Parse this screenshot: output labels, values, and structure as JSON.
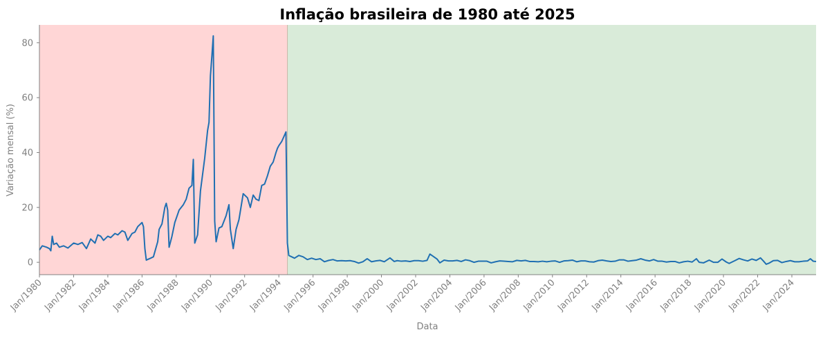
{
  "chart_data": {
    "type": "line",
    "title": "Inflação brasileira de 1980 até 2025",
    "xlabel": "Data",
    "ylabel": "Variação mensal (%)",
    "x_range": [
      "1980-01",
      "2025-06"
    ],
    "ylim": [
      -4.5,
      86.5
    ],
    "y_ticks": [
      0,
      20,
      40,
      60,
      80
    ],
    "x_ticks": [
      "Jan/1980",
      "Jan/1982",
      "Jan/1984",
      "Jan/1986",
      "Jan/1988",
      "Jan/1990",
      "Jan/1992",
      "Jan/1994",
      "Jan/1996",
      "Jan/1998",
      "Jan/2000",
      "Jan/2002",
      "Jan/2004",
      "Jan/2006",
      "Jan/2008",
      "Jan/2010",
      "Jan/2012",
      "Jan/2014",
      "Jan/2016",
      "Jan/2018",
      "Jan/2020",
      "Jan/2022",
      "Jan/2024"
    ],
    "regions": [
      {
        "from": "1980-01",
        "to": "1994-07",
        "color": "#ffd6d6"
      },
      {
        "from": "1994-07",
        "to": "2025-06",
        "color": "#d9ebd9"
      }
    ],
    "grid": false,
    "series": [
      {
        "color": "#1f6fb2",
        "points": [
          [
            "1980-01",
            4.5
          ],
          [
            "1980-03",
            6.0
          ],
          [
            "1980-06",
            5.5
          ],
          [
            "1980-08",
            5.0
          ],
          [
            "1980-09",
            4.2
          ],
          [
            "1980-10",
            9.5
          ],
          [
            "1980-11",
            6.5
          ],
          [
            "1981-01",
            7.0
          ],
          [
            "1981-03",
            5.5
          ],
          [
            "1981-06",
            6.0
          ],
          [
            "1981-09",
            5.2
          ],
          [
            "1982-01",
            7.0
          ],
          [
            "1982-04",
            6.5
          ],
          [
            "1982-07",
            7.2
          ],
          [
            "1982-10",
            5.0
          ],
          [
            "1983-01",
            8.5
          ],
          [
            "1983-04",
            7.0
          ],
          [
            "1983-06",
            10.0
          ],
          [
            "1983-08",
            9.5
          ],
          [
            "1983-10",
            8.0
          ],
          [
            "1984-01",
            9.5
          ],
          [
            "1984-03",
            9.0
          ],
          [
            "1984-06",
            10.5
          ],
          [
            "1984-08",
            10.0
          ],
          [
            "1984-11",
            11.5
          ],
          [
            "1985-01",
            11.0
          ],
          [
            "1985-03",
            8.0
          ],
          [
            "1985-06",
            10.5
          ],
          [
            "1985-08",
            11.0
          ],
          [
            "1985-10",
            13.0
          ],
          [
            "1986-01",
            14.5
          ],
          [
            "1986-02",
            13.0
          ],
          [
            "1986-03",
            5.0
          ],
          [
            "1986-04",
            0.8
          ],
          [
            "1986-07",
            1.5
          ],
          [
            "1986-09",
            2.0
          ],
          [
            "1986-12",
            7.5
          ],
          [
            "1987-01",
            12.0
          ],
          [
            "1987-03",
            14.0
          ],
          [
            "1987-05",
            20.0
          ],
          [
            "1987-06",
            21.5
          ],
          [
            "1987-07",
            19.0
          ],
          [
            "1987-08",
            5.5
          ],
          [
            "1987-10",
            9.5
          ],
          [
            "1987-12",
            14.5
          ],
          [
            "1988-03",
            19.0
          ],
          [
            "1988-06",
            21.0
          ],
          [
            "1988-08",
            23.0
          ],
          [
            "1988-10",
            27.0
          ],
          [
            "1988-12",
            28.0
          ],
          [
            "1989-01",
            37.5
          ],
          [
            "1989-02",
            7.0
          ],
          [
            "1989-04",
            10.0
          ],
          [
            "1989-06",
            26.0
          ],
          [
            "1989-09",
            38.0
          ],
          [
            "1989-11",
            48.0
          ],
          [
            "1989-12",
            51.0
          ],
          [
            "1990-01",
            68.0
          ],
          [
            "1990-02",
            75.0
          ],
          [
            "1990-03",
            82.5
          ],
          [
            "1990-04",
            15.0
          ],
          [
            "1990-05",
            7.5
          ],
          [
            "1990-07",
            12.5
          ],
          [
            "1990-09",
            13.0
          ],
          [
            "1990-12",
            17.0
          ],
          [
            "1991-02",
            21.0
          ],
          [
            "1991-03",
            12.0
          ],
          [
            "1991-05",
            5.0
          ],
          [
            "1991-07",
            12.0
          ],
          [
            "1991-09",
            15.5
          ],
          [
            "1991-12",
            25.0
          ],
          [
            "1992-03",
            23.5
          ],
          [
            "1992-05",
            20.0
          ],
          [
            "1992-07",
            24.5
          ],
          [
            "1992-09",
            23.0
          ],
          [
            "1992-11",
            22.5
          ],
          [
            "1993-01",
            28.0
          ],
          [
            "1993-03",
            28.5
          ],
          [
            "1993-05",
            31.5
          ],
          [
            "1993-07",
            35.0
          ],
          [
            "1993-09",
            36.5
          ],
          [
            "1993-11",
            40.0
          ],
          [
            "1993-12",
            41.5
          ],
          [
            "1994-01",
            42.5
          ],
          [
            "1994-03",
            44.0
          ],
          [
            "1994-06",
            47.5
          ],
          [
            "1994-07",
            7.0
          ],
          [
            "1994-08",
            2.5
          ],
          [
            "1994-10",
            2.0
          ],
          [
            "1994-12",
            1.5
          ],
          [
            "1995-03",
            2.5
          ],
          [
            "1995-06",
            2.0
          ],
          [
            "1995-09",
            1.0
          ],
          [
            "1995-12",
            1.5
          ],
          [
            "1996-03",
            1.0
          ],
          [
            "1996-06",
            1.3
          ],
          [
            "1996-09",
            0.2
          ],
          [
            "1996-12",
            0.7
          ],
          [
            "1997-03",
            1.0
          ],
          [
            "1997-06",
            0.5
          ],
          [
            "1997-09",
            0.6
          ],
          [
            "1997-12",
            0.5
          ],
          [
            "1998-03",
            0.6
          ],
          [
            "1998-06",
            0.3
          ],
          [
            "1998-09",
            -0.3
          ],
          [
            "1998-12",
            0.2
          ],
          [
            "1999-03",
            1.3
          ],
          [
            "1999-06",
            0.2
          ],
          [
            "1999-09",
            0.5
          ],
          [
            "1999-12",
            0.7
          ],
          [
            "2000-03",
            0.2
          ],
          [
            "2000-07",
            1.6
          ],
          [
            "2000-10",
            0.3
          ],
          [
            "2000-12",
            0.6
          ],
          [
            "2001-03",
            0.4
          ],
          [
            "2001-06",
            0.5
          ],
          [
            "2001-09",
            0.3
          ],
          [
            "2001-12",
            0.6
          ],
          [
            "2002-03",
            0.6
          ],
          [
            "2002-06",
            0.4
          ],
          [
            "2002-09",
            0.7
          ],
          [
            "2002-11",
            3.0
          ],
          [
            "2003-01",
            2.3
          ],
          [
            "2003-04",
            1.2
          ],
          [
            "2003-06",
            -0.2
          ],
          [
            "2003-09",
            0.8
          ],
          [
            "2003-12",
            0.5
          ],
          [
            "2004-03",
            0.5
          ],
          [
            "2004-06",
            0.7
          ],
          [
            "2004-09",
            0.3
          ],
          [
            "2004-12",
            0.9
          ],
          [
            "2005-03",
            0.6
          ],
          [
            "2005-06",
            0.0
          ],
          [
            "2005-09",
            0.4
          ],
          [
            "2005-12",
            0.4
          ],
          [
            "2006-03",
            0.4
          ],
          [
            "2006-06",
            -0.2
          ],
          [
            "2006-09",
            0.2
          ],
          [
            "2006-12",
            0.5
          ],
          [
            "2007-03",
            0.4
          ],
          [
            "2007-06",
            0.3
          ],
          [
            "2007-09",
            0.2
          ],
          [
            "2007-12",
            0.7
          ],
          [
            "2008-03",
            0.5
          ],
          [
            "2008-06",
            0.7
          ],
          [
            "2008-09",
            0.3
          ],
          [
            "2008-12",
            0.3
          ],
          [
            "2009-03",
            0.2
          ],
          [
            "2009-06",
            0.4
          ],
          [
            "2009-09",
            0.2
          ],
          [
            "2009-12",
            0.4
          ],
          [
            "2010-03",
            0.5
          ],
          [
            "2010-06",
            0.0
          ],
          [
            "2010-09",
            0.5
          ],
          [
            "2010-12",
            0.6
          ],
          [
            "2011-03",
            0.8
          ],
          [
            "2011-06",
            0.2
          ],
          [
            "2011-09",
            0.5
          ],
          [
            "2011-12",
            0.5
          ],
          [
            "2012-03",
            0.2
          ],
          [
            "2012-06",
            0.1
          ],
          [
            "2012-09",
            0.6
          ],
          [
            "2012-12",
            0.8
          ],
          [
            "2013-03",
            0.5
          ],
          [
            "2013-06",
            0.3
          ],
          [
            "2013-09",
            0.4
          ],
          [
            "2013-12",
            0.9
          ],
          [
            "2014-03",
            0.9
          ],
          [
            "2014-06",
            0.4
          ],
          [
            "2014-09",
            0.6
          ],
          [
            "2014-12",
            0.8
          ],
          [
            "2015-03",
            1.3
          ],
          [
            "2015-06",
            0.8
          ],
          [
            "2015-09",
            0.5
          ],
          [
            "2015-12",
            1.0
          ],
          [
            "2016-03",
            0.4
          ],
          [
            "2016-06",
            0.4
          ],
          [
            "2016-09",
            0.1
          ],
          [
            "2016-12",
            0.3
          ],
          [
            "2017-03",
            0.3
          ],
          [
            "2017-06",
            -0.2
          ],
          [
            "2017-09",
            0.2
          ],
          [
            "2017-12",
            0.4
          ],
          [
            "2018-03",
            0.1
          ],
          [
            "2018-06",
            1.3
          ],
          [
            "2018-08",
            0.0
          ],
          [
            "2018-11",
            -0.2
          ],
          [
            "2019-03",
            0.8
          ],
          [
            "2019-06",
            0.0
          ],
          [
            "2019-09",
            0.0
          ],
          [
            "2019-12",
            1.2
          ],
          [
            "2020-03",
            0.1
          ],
          [
            "2020-05",
            -0.4
          ],
          [
            "2020-09",
            0.6
          ],
          [
            "2020-12",
            1.4
          ],
          [
            "2021-03",
            0.9
          ],
          [
            "2021-06",
            0.5
          ],
          [
            "2021-09",
            1.2
          ],
          [
            "2021-12",
            0.7
          ],
          [
            "2022-03",
            1.6
          ],
          [
            "2022-05",
            0.5
          ],
          [
            "2022-07",
            -0.7
          ],
          [
            "2022-09",
            -0.3
          ],
          [
            "2022-12",
            0.6
          ],
          [
            "2023-03",
            0.7
          ],
          [
            "2023-06",
            -0.1
          ],
          [
            "2023-09",
            0.3
          ],
          [
            "2023-12",
            0.6
          ],
          [
            "2024-03",
            0.2
          ],
          [
            "2024-06",
            0.2
          ],
          [
            "2024-09",
            0.4
          ],
          [
            "2024-12",
            0.5
          ],
          [
            "2025-02",
            1.3
          ],
          [
            "2025-04",
            0.4
          ],
          [
            "2025-06",
            0.3
          ]
        ]
      }
    ]
  }
}
